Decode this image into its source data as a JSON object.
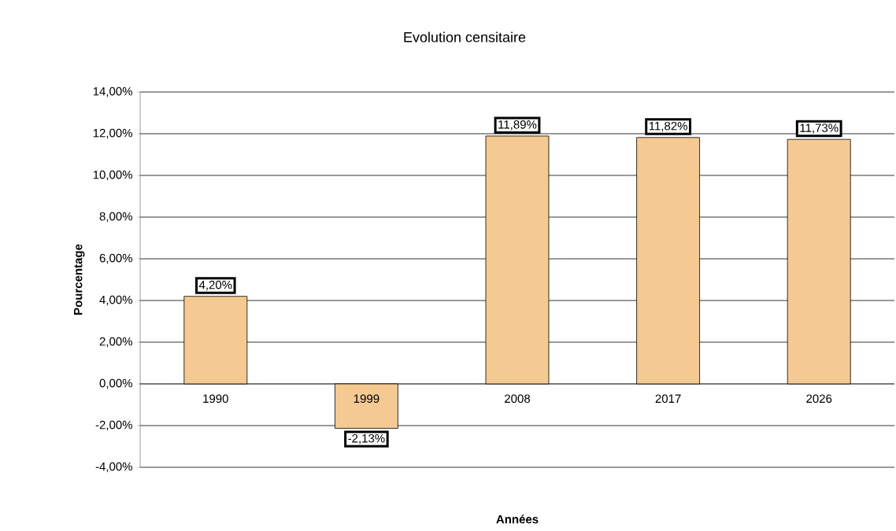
{
  "chart_data": {
    "type": "bar",
    "title": "Evolution censitaire",
    "xlabel": "Années",
    "ylabel": "Pourcentage",
    "categories": [
      "1990",
      "1999",
      "2008",
      "2017",
      "2026"
    ],
    "values": [
      4.2,
      -2.13,
      11.89,
      11.82,
      11.73
    ],
    "value_labels": [
      "4,20%",
      "-2,13%",
      "11,89%",
      "11,82%",
      "11,73%"
    ],
    "color": "#f5c992",
    "ylim": [
      -4,
      14
    ],
    "yticks": [
      {
        "value": -4,
        "label": "-4,00%"
      },
      {
        "value": -2,
        "label": "-2,00%"
      },
      {
        "value": 0,
        "label": "0,00%"
      },
      {
        "value": 2,
        "label": "2,00%"
      },
      {
        "value": 4,
        "label": "4,00%"
      },
      {
        "value": 6,
        "label": "6,00%"
      },
      {
        "value": 8,
        "label": "8,00%"
      },
      {
        "value": 10,
        "label": "10,00%"
      },
      {
        "value": 12,
        "label": "12,00%"
      },
      {
        "value": 14,
        "label": "14,00%"
      }
    ],
    "grid": "y"
  }
}
